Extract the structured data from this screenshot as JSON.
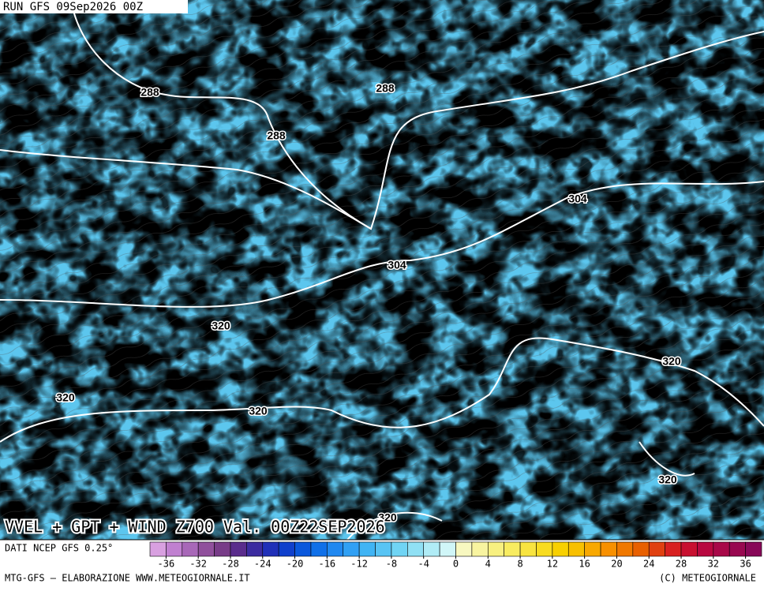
{
  "header": {
    "run": "RUN GFS 09Sep2026 00Z"
  },
  "map": {
    "contour_labels": [
      "288",
      "288",
      "288",
      "304",
      "304",
      "320",
      "320",
      "320",
      "320",
      "320",
      "320"
    ],
    "title": "VVEL + GPT + WIND Z700 Val. 00Z22SEP2026"
  },
  "legend": {
    "source": "DATI NCEP GFS 0.25°",
    "lim": [
      -38,
      38
    ],
    "ticks": [
      -36,
      -32,
      -28,
      -24,
      -20,
      -16,
      -12,
      -8,
      -4,
      0,
      4,
      8,
      12,
      16,
      20,
      24,
      28,
      32,
      36
    ],
    "colors": [
      "#d8a0e0",
      "#c080d0",
      "#a868b8",
      "#90509c",
      "#783c88",
      "#5a2c8c",
      "#3c2ca0",
      "#2030b8",
      "#1040cc",
      "#0a58dc",
      "#1070e8",
      "#2088f0",
      "#30a0f4",
      "#40b4f4",
      "#58c4f4",
      "#70d4f4",
      "#90e0f4",
      "#b0ecf6",
      "#d0f6f8",
      "#f8f8c0",
      "#f8f4a0",
      "#f8f080",
      "#f8ec60",
      "#f8e440",
      "#f8dc20",
      "#f8d000",
      "#f8c000",
      "#f8a800",
      "#f89000",
      "#f07800",
      "#e86000",
      "#e04010",
      "#d82020",
      "#c81030",
      "#b80840",
      "#a80848",
      "#980850",
      "#880858"
    ]
  },
  "footer": {
    "left": "MTG-GFS — ELABORAZIONE WWW.METEOGIORNALE.IT",
    "right": "(C) METEOGIORNALE"
  }
}
